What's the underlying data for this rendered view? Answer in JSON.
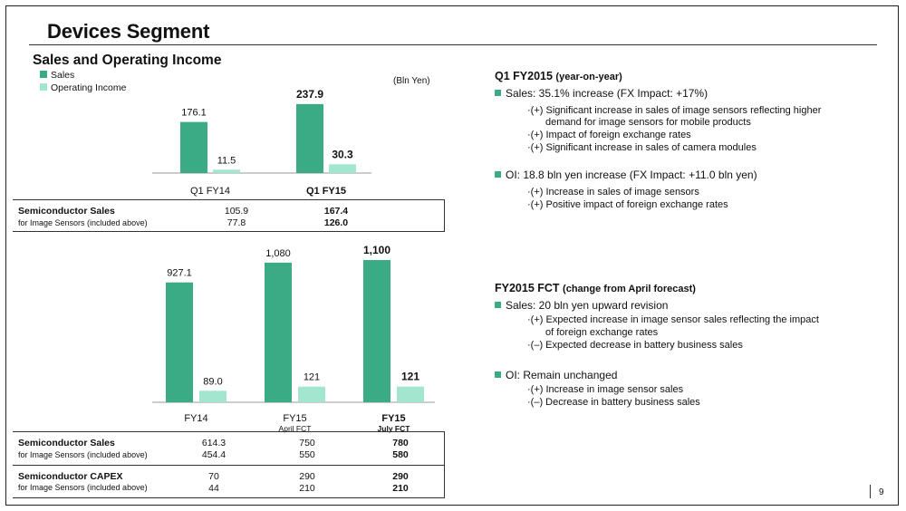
{
  "page": {
    "title": "Devices Segment",
    "page_number": "9"
  },
  "colors": {
    "sales": "#3aab84",
    "operating_income": "#a3e6cf",
    "bullet": "#3aab84"
  },
  "chart_data": [
    {
      "type": "bar",
      "title": "Sales and Operating Income",
      "unit": "(Bln Yen)",
      "categories": [
        "Q1 FY14",
        "Q1 FY15"
      ],
      "category_bold": [
        false,
        true
      ],
      "series": [
        {
          "name": "Sales",
          "values": [
            176.1,
            237.9
          ],
          "labels": [
            "176.1",
            "237.9"
          ]
        },
        {
          "name": "Operating Income",
          "values": [
            11.5,
            30.3
          ],
          "labels": [
            "11.5",
            "30.3"
          ]
        }
      ],
      "legend": "top-left",
      "table": {
        "rows": [
          {
            "label": "Semiconductor Sales",
            "values": [
              "105.9",
              "167.4"
            ]
          },
          {
            "label": "for Image Sensors (included above)",
            "values": [
              "77.8",
              "126.0"
            ]
          }
        ]
      }
    },
    {
      "type": "bar",
      "categories": [
        "FY14",
        "FY15",
        "FY15"
      ],
      "category_sublabels": [
        "",
        "April FCT",
        "July FCT"
      ],
      "category_bold": [
        false,
        false,
        true
      ],
      "series": [
        {
          "name": "Sales",
          "values": [
            927.1,
            1080,
            1100
          ],
          "labels": [
            "927.1",
            "1,080",
            "1,100"
          ]
        },
        {
          "name": "Operating Income",
          "values": [
            89.0,
            121,
            121
          ],
          "labels": [
            "89.0",
            "121",
            "121"
          ]
        }
      ],
      "table": {
        "rows": [
          {
            "label": "Semiconductor Sales",
            "values": [
              "614.3",
              "750",
              "780"
            ]
          },
          {
            "label": "for Image Sensors (included above)",
            "values": [
              "454.4",
              "550",
              "580"
            ]
          },
          {
            "label": "Semiconductor CAPEX",
            "values": [
              "70",
              "290",
              "290"
            ]
          },
          {
            "label": "for Image Sensors (included above)",
            "values": [
              "44",
              "210",
              "210"
            ]
          }
        ]
      }
    }
  ],
  "right": {
    "q1": {
      "heading": "Q1 FY2015",
      "heading_suffix": "(year-on-year)",
      "sales_bullet": "Sales: 35.1% increase (FX Impact:  +17%)",
      "sales_items": [
        "(+) Significant increase in sales of image sensors reflecting higher",
        "demand for image sensors for mobile products",
        "(+) Impact of foreign exchange rates",
        "(+) Significant increase in sales of camera modules"
      ],
      "oi_bullet": "OI: 18.8 bln yen increase (FX Impact:  +11.0 bln yen)",
      "oi_items": [
        "(+) Increase in sales of image sensors",
        "(+) Positive impact of foreign exchange rates"
      ]
    },
    "fy": {
      "heading": "FY2015 FCT",
      "heading_suffix": "(change from April forecast)",
      "sales_bullet": "Sales: 20 bln yen upward revision",
      "sales_items": [
        "(+) Expected increase in image sensor sales reflecting the impact",
        "of foreign exchange rates",
        "(–) Expected decrease in battery business sales"
      ],
      "oi_bullet": "OI: Remain unchanged",
      "oi_items": [
        "(+) Increase in image sensor sales",
        "(–) Decrease in battery business sales"
      ]
    }
  }
}
